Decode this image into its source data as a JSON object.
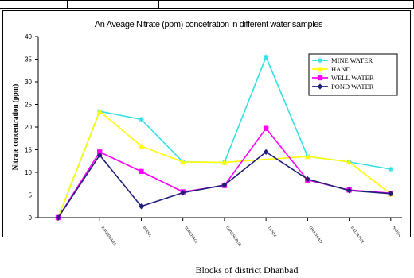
{
  "chart_data": {
    "type": "line",
    "title": "An Aveage Nitrate (ppm) concetration in different water samples",
    "xlabel": "Blocks of district Dhanbad",
    "ylabel": "Nitrate concentration (ppm)",
    "ylim": [
      0,
      40
    ],
    "yticks": [
      0,
      5,
      10,
      15,
      20,
      25,
      30,
      35,
      40
    ],
    "grid": false,
    "legend_position": "top-right",
    "categories": [
      "",
      "BAGHMARA",
      "BIRSA",
      "TOPCHACI",
      "GOVINDPUR",
      "TUNDI",
      "DHANBAD",
      "BALIAPUR",
      "NIRSA"
    ],
    "series": [
      {
        "name": "MINE WATER",
        "color": "#33e0e8",
        "marker": "star",
        "values": [
          0,
          23.5,
          21.7,
          12.3,
          12.2,
          35.5,
          13.5,
          12.3,
          10.7
        ]
      },
      {
        "name": "HAND",
        "color": "#ffff00",
        "marker": "triangle",
        "values": [
          0,
          23.5,
          15.8,
          12.3,
          12.2,
          null,
          13.5,
          12.3,
          5.2
        ]
      },
      {
        "name": "WELL WATER",
        "color": "#ff00ff",
        "marker": "square",
        "values": [
          0,
          14.5,
          10.2,
          5.7,
          7.1,
          19.7,
          8.3,
          6.1,
          5.4
        ]
      },
      {
        "name": "POND WATER",
        "color": "#1f1f7a",
        "marker": "diamond",
        "values": [
          0,
          13.8,
          2.5,
          5.5,
          7.2,
          14.5,
          8.5,
          6.0,
          5.3
        ]
      }
    ]
  }
}
